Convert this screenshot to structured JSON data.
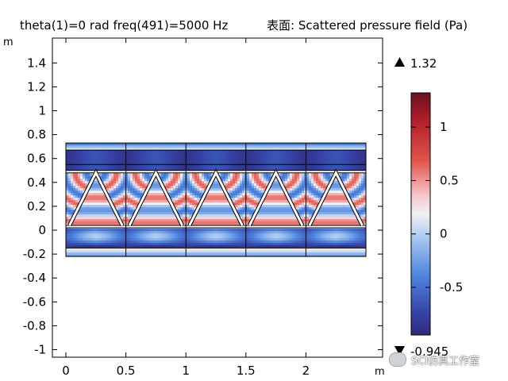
{
  "chart_data": {
    "type": "heatmap",
    "title": "theta(1)=0 rad freq(491)=5000 Hz  表面: Scattered pressure field (Pa)",
    "title_left": "theta(1)=0 rad freq(491)=5000 Hz",
    "title_right": "表面: Scattered pressure field (Pa)",
    "xlabel": "m",
    "ylabel": "m",
    "xlim": [
      -0.1,
      2.55
    ],
    "ylim": [
      -1.05,
      1.55
    ],
    "x_ticks": [
      0,
      0.5,
      1,
      1.5,
      2
    ],
    "x_tick_labels": [
      "0",
      "0.5",
      "1",
      "1.5",
      "2"
    ],
    "y_ticks": [
      1.4,
      1.2,
      1,
      0.8,
      0.6,
      0.4,
      0.2,
      0,
      -0.2,
      -0.4,
      -0.6,
      -0.8,
      -1
    ],
    "y_tick_labels": [
      "1.4",
      "1.2",
      "1",
      "0.8",
      "0.6",
      "0.4",
      "0.2",
      "0",
      "-0.2",
      "-0.4",
      "-0.6",
      "-0.8",
      "-1"
    ],
    "domain": {
      "x_range": [
        0,
        2.5
      ],
      "y_range": [
        -0.22,
        0.73
      ],
      "cell_boundaries_x": [
        0,
        0.5,
        1,
        1.5,
        2,
        2.5
      ],
      "inner_plate_bottom": [
        0.02,
        0.04
      ],
      "inner_plate_top": [
        0.48,
        0.5
      ],
      "truss_apex_y": 0.48,
      "truss_base_y": 0.04,
      "truss_apex_x": [
        0.25,
        0.75,
        1.25,
        1.75,
        2.25
      ],
      "truss_base_x": [
        0.03,
        0.47,
        0.53,
        0.97,
        1.03,
        1.47,
        1.53,
        1.97,
        2.03,
        2.47
      ],
      "horizontal_lines_y": [
        0.67,
        0.55,
        -0.15
      ]
    },
    "colorbar": {
      "max_label": "1.32",
      "min_label": "-0.945",
      "max": 1.32,
      "min": -0.945,
      "ticks": [
        1,
        0.5,
        0,
        -0.5
      ],
      "tick_labels": [
        "1",
        "0.5",
        "0",
        "-0.5"
      ],
      "colormap": "RdBu_r"
    }
  },
  "colors": {
    "deep_red": "#6b1020",
    "red": "#d62c2c",
    "light": "#f2f2f2",
    "blue": "#3f73d9",
    "deep_blue": "#33307f"
  },
  "watermark": {
    "text": "SCI仿真工作室",
    "icon": "wechat-icon"
  }
}
